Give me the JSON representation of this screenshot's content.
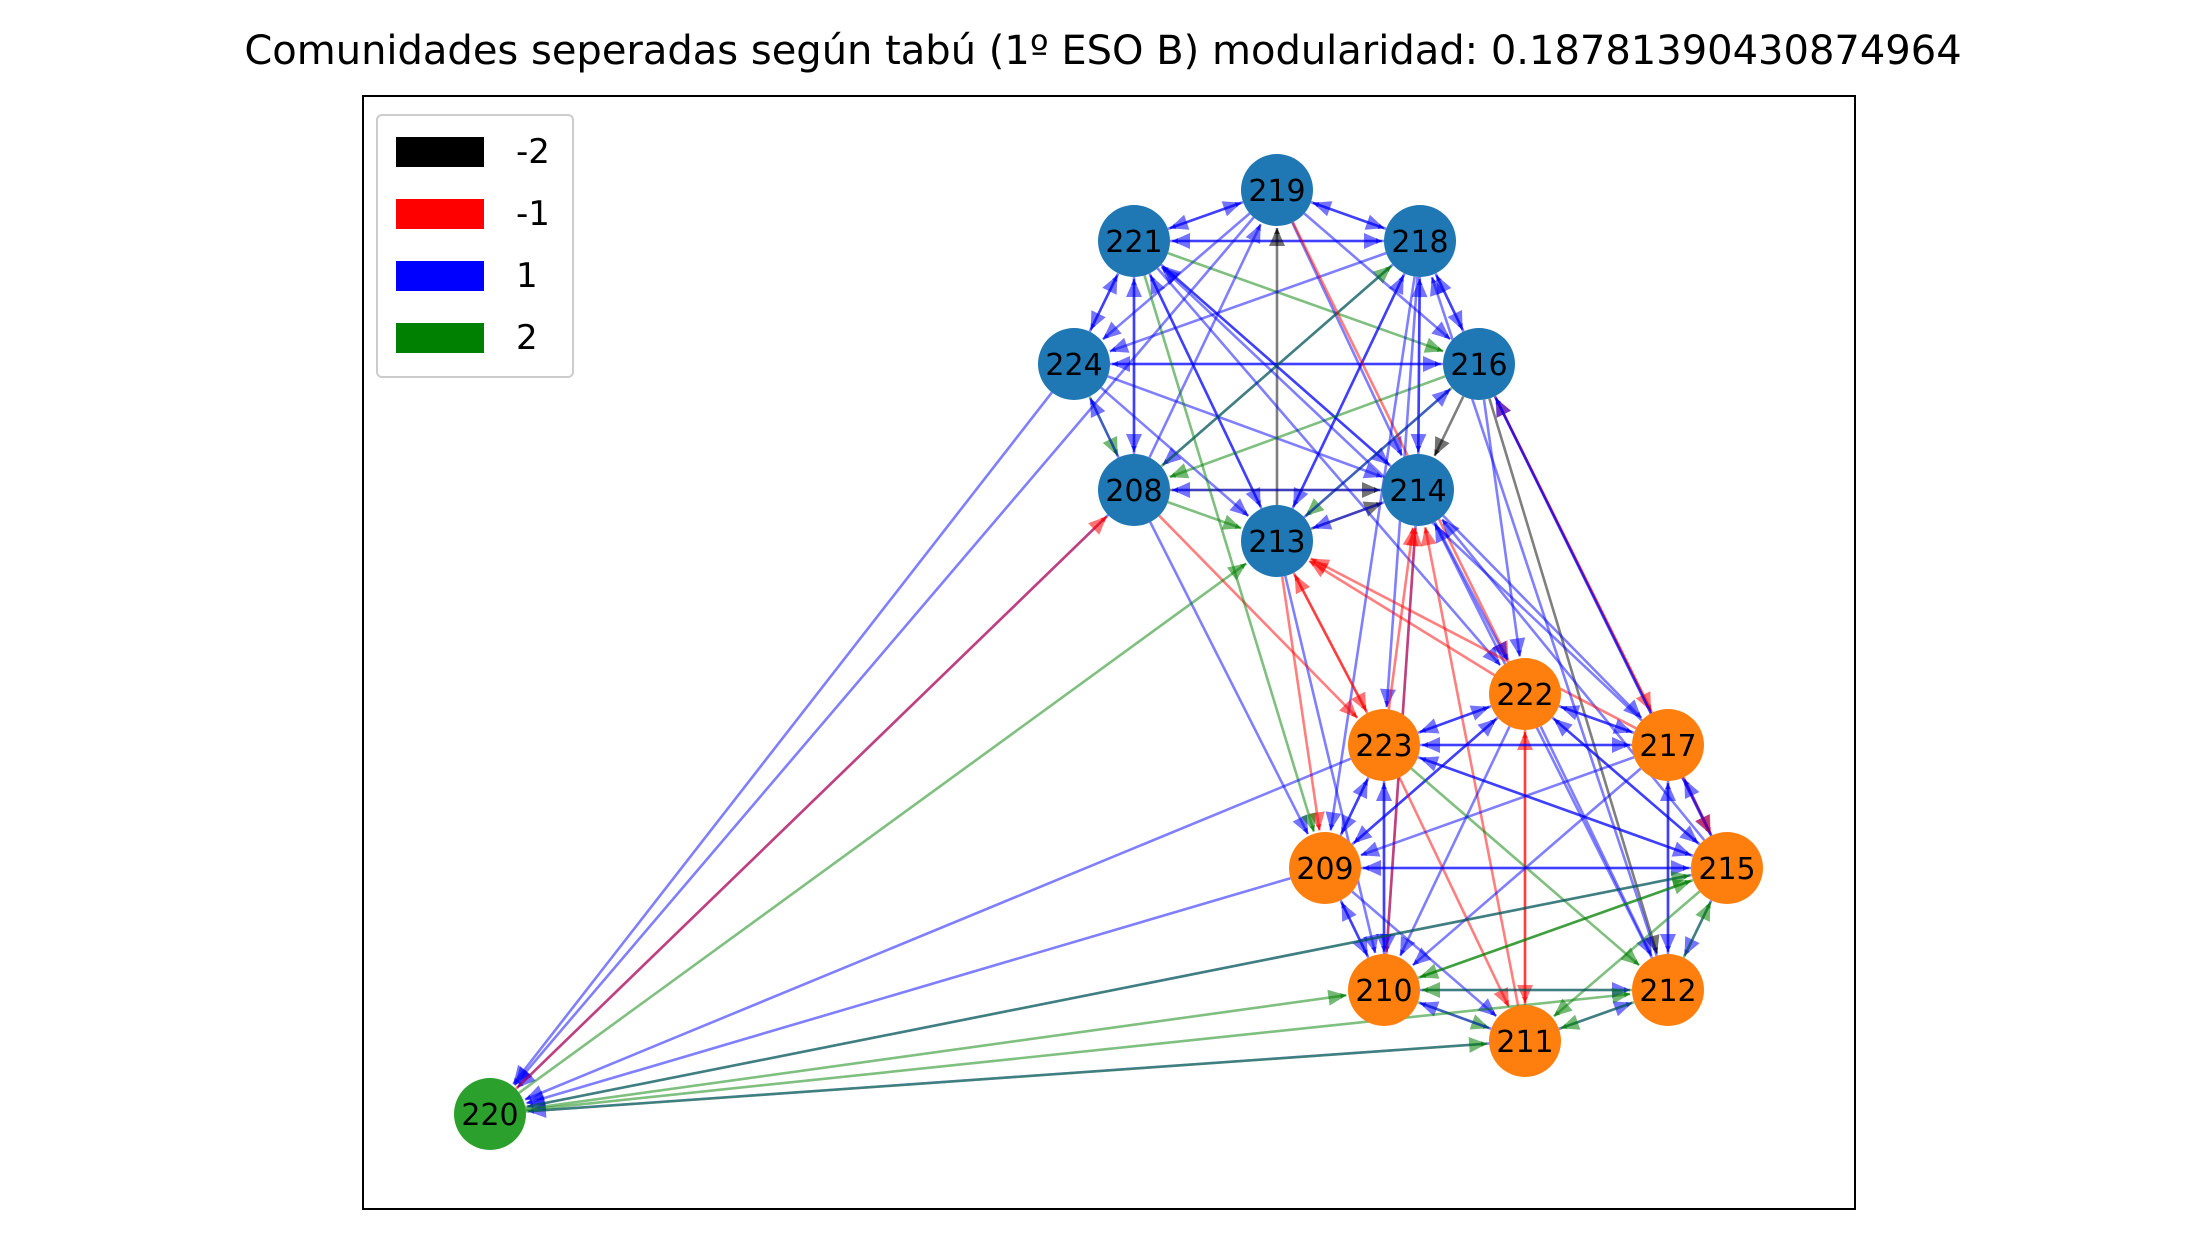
{
  "title": "Comunidades seperadas según tabú (1º ESO B) modularidad: 0.18781390430874964",
  "legend": [
    {
      "label": "-2",
      "color": "#000000"
    },
    {
      "label": "-1",
      "color": "#ff0000"
    },
    {
      "label": "1",
      "color": "#0000ff"
    },
    {
      "label": "2",
      "color": "#008000"
    }
  ],
  "communities": [
    {
      "color": "#1f77b4",
      "nodes": [
        "219",
        "221",
        "218",
        "224",
        "216",
        "208",
        "214",
        "213"
      ]
    },
    {
      "color": "#ff7f0e",
      "nodes": [
        "222",
        "223",
        "217",
        "209",
        "215",
        "210",
        "212",
        "211"
      ]
    },
    {
      "color": "#2ca02c",
      "nodes": [
        "220"
      ]
    }
  ],
  "edges": [
    {
      "from": "221",
      "to": "219",
      "weight": 1
    },
    {
      "from": "219",
      "to": "221",
      "weight": 1
    },
    {
      "from": "219",
      "to": "218",
      "weight": 1
    },
    {
      "from": "218",
      "to": "219",
      "weight": 1
    },
    {
      "from": "221",
      "to": "218",
      "weight": 1
    },
    {
      "from": "218",
      "to": "221",
      "weight": 1
    },
    {
      "from": "219",
      "to": "224",
      "weight": 1
    },
    {
      "from": "224",
      "to": "221",
      "weight": 1
    },
    {
      "from": "221",
      "to": "224",
      "weight": 1
    },
    {
      "from": "221",
      "to": "216",
      "weight": 2
    },
    {
      "from": "213",
      "to": "219",
      "weight": -2
    },
    {
      "from": "208",
      "to": "219",
      "weight": 1
    },
    {
      "from": "216",
      "to": "224",
      "weight": 1
    },
    {
      "from": "224",
      "to": "216",
      "weight": 1
    },
    {
      "from": "218",
      "to": "224",
      "weight": 1
    },
    {
      "from": "224",
      "to": "208",
      "weight": 2
    },
    {
      "from": "208",
      "to": "224",
      "weight": 1
    },
    {
      "from": "224",
      "to": "213",
      "weight": 1
    },
    {
      "from": "224",
      "to": "214",
      "weight": 1
    },
    {
      "from": "221",
      "to": "208",
      "weight": 1
    },
    {
      "from": "208",
      "to": "221",
      "weight": 1
    },
    {
      "from": "221",
      "to": "213",
      "weight": 1
    },
    {
      "from": "213",
      "to": "221",
      "weight": 1
    },
    {
      "from": "221",
      "to": "214",
      "weight": 1
    },
    {
      "from": "214",
      "to": "221",
      "weight": 1
    },
    {
      "from": "219",
      "to": "214",
      "weight": 1
    },
    {
      "from": "219",
      "to": "216",
      "weight": 1
    },
    {
      "from": "218",
      "to": "208",
      "weight": 1
    },
    {
      "from": "208",
      "to": "218",
      "weight": 2
    },
    {
      "from": "218",
      "to": "213",
      "weight": 1
    },
    {
      "from": "213",
      "to": "218",
      "weight": 1
    },
    {
      "from": "214",
      "to": "218",
      "weight": 1
    },
    {
      "from": "218",
      "to": "214",
      "weight": 1
    },
    {
      "from": "216",
      "to": "218",
      "weight": 1
    },
    {
      "from": "218",
      "to": "216",
      "weight": 1
    },
    {
      "from": "216",
      "to": "208",
      "weight": 2
    },
    {
      "from": "216",
      "to": "213",
      "weight": 2
    },
    {
      "from": "216",
      "to": "214",
      "weight": -2
    },
    {
      "from": "213",
      "to": "216",
      "weight": 1
    },
    {
      "from": "208",
      "to": "214",
      "weight": -2
    },
    {
      "from": "208",
      "to": "213",
      "weight": 2
    },
    {
      "from": "213",
      "to": "214",
      "weight": -2
    },
    {
      "from": "214",
      "to": "213",
      "weight": 1
    },
    {
      "from": "214",
      "to": "208",
      "weight": 1
    },
    {
      "from": "219",
      "to": "222",
      "weight": -1
    },
    {
      "from": "221",
      "to": "222",
      "weight": 1
    },
    {
      "from": "218",
      "to": "223",
      "weight": 1
    },
    {
      "from": "218",
      "to": "209",
      "weight": 1
    },
    {
      "from": "216",
      "to": "217",
      "weight": -1
    },
    {
      "from": "217",
      "to": "216",
      "weight": -1
    },
    {
      "from": "216",
      "to": "215",
      "weight": 1
    },
    {
      "from": "216",
      "to": "212",
      "weight": -2
    },
    {
      "from": "216",
      "to": "222",
      "weight": 1
    },
    {
      "from": "214",
      "to": "222",
      "weight": 1
    },
    {
      "from": "214",
      "to": "210",
      "weight": 1
    },
    {
      "from": "214",
      "to": "217",
      "weight": 1
    },
    {
      "from": "213",
      "to": "223",
      "weight": -1
    },
    {
      "from": "223",
      "to": "213",
      "weight": -1
    },
    {
      "from": "213",
      "to": "209",
      "weight": -1
    },
    {
      "from": "213",
      "to": "210",
      "weight": 1
    },
    {
      "from": "208",
      "to": "209",
      "weight": 1
    },
    {
      "from": "208",
      "to": "223",
      "weight": -1
    },
    {
      "from": "221",
      "to": "209",
      "weight": 2
    },
    {
      "from": "223",
      "to": "214",
      "weight": -1
    },
    {
      "from": "210",
      "to": "214",
      "weight": -1
    },
    {
      "from": "215",
      "to": "214",
      "weight": 1
    },
    {
      "from": "215",
      "to": "216",
      "weight": 1
    },
    {
      "from": "212",
      "to": "214",
      "weight": 1
    },
    {
      "from": "211",
      "to": "214",
      "weight": -1
    },
    {
      "from": "222",
      "to": "213",
      "weight": -1
    },
    {
      "from": "217",
      "to": "213",
      "weight": -1
    },
    {
      "from": "212",
      "to": "218",
      "weight": 1
    },
    {
      "from": "217",
      "to": "221",
      "weight": 1
    },
    {
      "from": "222",
      "to": "223",
      "weight": 1
    },
    {
      "from": "223",
      "to": "222",
      "weight": 1
    },
    {
      "from": "222",
      "to": "217",
      "weight": 1
    },
    {
      "from": "217",
      "to": "222",
      "weight": 1
    },
    {
      "from": "222",
      "to": "215",
      "weight": 1
    },
    {
      "from": "215",
      "to": "222",
      "weight": 1
    },
    {
      "from": "222",
      "to": "209",
      "weight": 1
    },
    {
      "from": "209",
      "to": "222",
      "weight": 1
    },
    {
      "from": "222",
      "to": "210",
      "weight": 1
    },
    {
      "from": "222",
      "to": "211",
      "weight": -1
    },
    {
      "from": "211",
      "to": "222",
      "weight": -1
    },
    {
      "from": "222",
      "to": "212",
      "weight": 1
    },
    {
      "from": "223",
      "to": "217",
      "weight": 1
    },
    {
      "from": "217",
      "to": "223",
      "weight": 1
    },
    {
      "from": "223",
      "to": "209",
      "weight": 1
    },
    {
      "from": "209",
      "to": "223",
      "weight": 1
    },
    {
      "from": "223",
      "to": "215",
      "weight": 1
    },
    {
      "from": "215",
      "to": "223",
      "weight": 1
    },
    {
      "from": "223",
      "to": "210",
      "weight": 1
    },
    {
      "from": "210",
      "to": "223",
      "weight": 1
    },
    {
      "from": "223",
      "to": "211",
      "weight": -1
    },
    {
      "from": "223",
      "to": "212",
      "weight": 2
    },
    {
      "from": "217",
      "to": "215",
      "weight": -1
    },
    {
      "from": "215",
      "to": "217",
      "weight": 1
    },
    {
      "from": "217",
      "to": "209",
      "weight": 1
    },
    {
      "from": "217",
      "to": "210",
      "weight": 1
    },
    {
      "from": "217",
      "to": "212",
      "weight": 1
    },
    {
      "from": "212",
      "to": "217",
      "weight": 1
    },
    {
      "from": "209",
      "to": "215",
      "weight": 1
    },
    {
      "from": "215",
      "to": "209",
      "weight": 1
    },
    {
      "from": "209",
      "to": "210",
      "weight": 1
    },
    {
      "from": "210",
      "to": "209",
      "weight": 1
    },
    {
      "from": "209",
      "to": "211",
      "weight": 1
    },
    {
      "from": "215",
      "to": "210",
      "weight": 2
    },
    {
      "from": "210",
      "to": "215",
      "weight": 2
    },
    {
      "from": "215",
      "to": "212",
      "weight": 1
    },
    {
      "from": "212",
      "to": "215",
      "weight": 2
    },
    {
      "from": "215",
      "to": "211",
      "weight": 2
    },
    {
      "from": "210",
      "to": "211",
      "weight": 2
    },
    {
      "from": "211",
      "to": "210",
      "weight": 1
    },
    {
      "from": "210",
      "to": "212",
      "weight": 1
    },
    {
      "from": "212",
      "to": "210",
      "weight": 2
    },
    {
      "from": "211",
      "to": "212",
      "weight": 1
    },
    {
      "from": "212",
      "to": "211",
      "weight": 2
    },
    {
      "from": "219",
      "to": "220",
      "weight": 1
    },
    {
      "from": "224",
      "to": "220",
      "weight": 1
    },
    {
      "from": "208",
      "to": "220",
      "weight": 1
    },
    {
      "from": "220",
      "to": "208",
      "weight": -1
    },
    {
      "from": "220",
      "to": "213",
      "weight": 2
    },
    {
      "from": "223",
      "to": "220",
      "weight": 1
    },
    {
      "from": "209",
      "to": "220",
      "weight": 1
    },
    {
      "from": "215",
      "to": "220",
      "weight": 1
    },
    {
      "from": "211",
      "to": "220",
      "weight": 1
    },
    {
      "from": "220",
      "to": "215",
      "weight": 2
    },
    {
      "from": "220",
      "to": "210",
      "weight": 2
    },
    {
      "from": "220",
      "to": "211",
      "weight": 2
    },
    {
      "from": "220",
      "to": "212",
      "weight": 2
    }
  ]
}
